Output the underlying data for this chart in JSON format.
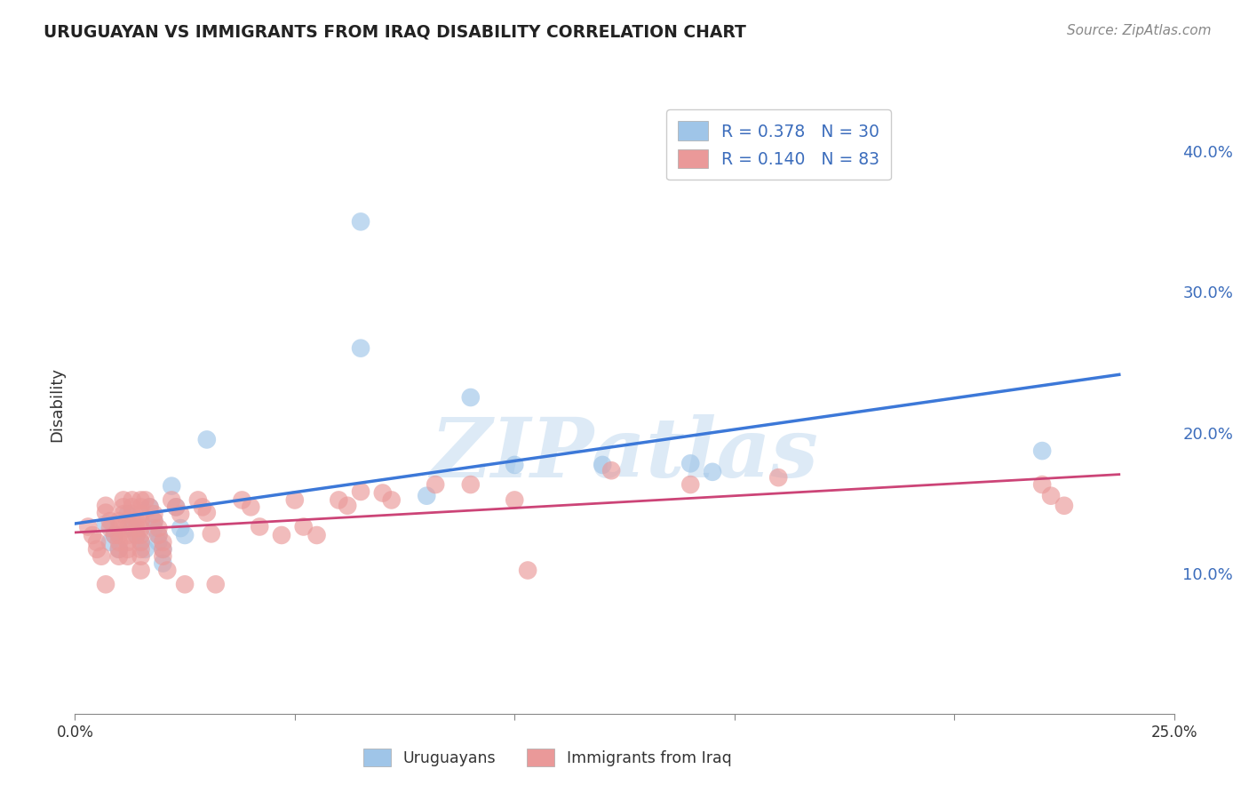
{
  "title": "URUGUAYAN VS IMMIGRANTS FROM IRAQ DISABILITY CORRELATION CHART",
  "source": "Source: ZipAtlas.com",
  "ylabel": "Disability",
  "xlim": [
    0.0,
    0.25
  ],
  "ylim": [
    0.0,
    0.44
  ],
  "yticks": [
    0.1,
    0.2,
    0.3,
    0.4
  ],
  "ytick_labels": [
    "10.0%",
    "20.0%",
    "30.0%",
    "40.0%"
  ],
  "xticks": [
    0.0,
    0.05,
    0.1,
    0.15,
    0.2,
    0.25
  ],
  "xtick_labels": [
    "0.0%",
    "",
    "",
    "",
    "",
    "25.0%"
  ],
  "uruguayan_color": "#9fc5e8",
  "iraq_color": "#ea9999",
  "uruguayan_line_color": "#3c78d8",
  "iraq_line_color": "#cc4477",
  "watermark": "ZIPatlas",
  "watermark_color": "#cfe2f3",
  "uruguayan_R": 0.378,
  "uruguayan_N": 30,
  "iraq_R": 0.14,
  "iraq_N": 83,
  "uruguayan_points": [
    [
      0.007,
      0.135
    ],
    [
      0.008,
      0.122
    ],
    [
      0.009,
      0.127
    ],
    [
      0.01,
      0.117
    ],
    [
      0.012,
      0.142
    ],
    [
      0.013,
      0.132
    ],
    [
      0.014,
      0.127
    ],
    [
      0.015,
      0.122
    ],
    [
      0.016,
      0.117
    ],
    [
      0.017,
      0.147
    ],
    [
      0.018,
      0.137
    ],
    [
      0.018,
      0.132
    ],
    [
      0.019,
      0.127
    ],
    [
      0.019,
      0.122
    ],
    [
      0.02,
      0.117
    ],
    [
      0.02,
      0.107
    ],
    [
      0.022,
      0.162
    ],
    [
      0.023,
      0.147
    ],
    [
      0.024,
      0.132
    ],
    [
      0.025,
      0.127
    ],
    [
      0.03,
      0.195
    ],
    [
      0.065,
      0.26
    ],
    [
      0.08,
      0.155
    ],
    [
      0.09,
      0.225
    ],
    [
      0.1,
      0.177
    ],
    [
      0.12,
      0.177
    ],
    [
      0.14,
      0.178
    ],
    [
      0.145,
      0.172
    ],
    [
      0.22,
      0.187
    ],
    [
      0.065,
      0.35
    ]
  ],
  "iraq_points": [
    [
      0.003,
      0.133
    ],
    [
      0.004,
      0.127
    ],
    [
      0.005,
      0.122
    ],
    [
      0.005,
      0.117
    ],
    [
      0.006,
      0.112
    ],
    [
      0.007,
      0.148
    ],
    [
      0.007,
      0.143
    ],
    [
      0.008,
      0.137
    ],
    [
      0.008,
      0.132
    ],
    [
      0.009,
      0.127
    ],
    [
      0.01,
      0.137
    ],
    [
      0.01,
      0.132
    ],
    [
      0.01,
      0.127
    ],
    [
      0.01,
      0.122
    ],
    [
      0.01,
      0.117
    ],
    [
      0.01,
      0.112
    ],
    [
      0.011,
      0.152
    ],
    [
      0.011,
      0.147
    ],
    [
      0.011,
      0.142
    ],
    [
      0.012,
      0.137
    ],
    [
      0.012,
      0.132
    ],
    [
      0.012,
      0.127
    ],
    [
      0.012,
      0.122
    ],
    [
      0.012,
      0.117
    ],
    [
      0.012,
      0.112
    ],
    [
      0.013,
      0.152
    ],
    [
      0.013,
      0.147
    ],
    [
      0.013,
      0.142
    ],
    [
      0.014,
      0.137
    ],
    [
      0.014,
      0.132
    ],
    [
      0.014,
      0.127
    ],
    [
      0.015,
      0.152
    ],
    [
      0.015,
      0.147
    ],
    [
      0.015,
      0.142
    ],
    [
      0.015,
      0.137
    ],
    [
      0.015,
      0.132
    ],
    [
      0.015,
      0.127
    ],
    [
      0.015,
      0.122
    ],
    [
      0.015,
      0.117
    ],
    [
      0.015,
      0.112
    ],
    [
      0.015,
      0.102
    ],
    [
      0.016,
      0.152
    ],
    [
      0.017,
      0.147
    ],
    [
      0.018,
      0.142
    ],
    [
      0.018,
      0.137
    ],
    [
      0.019,
      0.132
    ],
    [
      0.019,
      0.127
    ],
    [
      0.02,
      0.122
    ],
    [
      0.02,
      0.117
    ],
    [
      0.02,
      0.112
    ],
    [
      0.021,
      0.102
    ],
    [
      0.022,
      0.152
    ],
    [
      0.023,
      0.147
    ],
    [
      0.024,
      0.142
    ],
    [
      0.025,
      0.092
    ],
    [
      0.028,
      0.152
    ],
    [
      0.029,
      0.147
    ],
    [
      0.03,
      0.143
    ],
    [
      0.031,
      0.128
    ],
    [
      0.032,
      0.092
    ],
    [
      0.038,
      0.152
    ],
    [
      0.04,
      0.147
    ],
    [
      0.042,
      0.133
    ],
    [
      0.047,
      0.127
    ],
    [
      0.05,
      0.152
    ],
    [
      0.052,
      0.133
    ],
    [
      0.055,
      0.127
    ],
    [
      0.06,
      0.152
    ],
    [
      0.062,
      0.148
    ],
    [
      0.065,
      0.158
    ],
    [
      0.07,
      0.157
    ],
    [
      0.072,
      0.152
    ],
    [
      0.09,
      0.163
    ],
    [
      0.1,
      0.152
    ],
    [
      0.103,
      0.102
    ],
    [
      0.14,
      0.163
    ],
    [
      0.16,
      0.168
    ],
    [
      0.22,
      0.163
    ],
    [
      0.222,
      0.155
    ],
    [
      0.225,
      0.148
    ],
    [
      0.122,
      0.173
    ],
    [
      0.082,
      0.163
    ],
    [
      0.007,
      0.092
    ]
  ]
}
